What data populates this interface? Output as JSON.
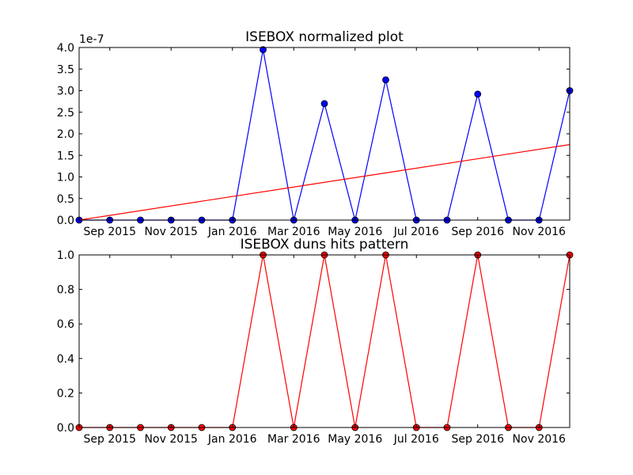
{
  "chart_data": [
    {
      "type": "line",
      "title": "ISEBOX normalized plot",
      "offset_label": "1e-7",
      "x": [
        "2015-08",
        "2015-09",
        "2015-10",
        "2015-11",
        "2015-12",
        "2016-01",
        "2016-02",
        "2016-03",
        "2016-04",
        "2016-05",
        "2016-06",
        "2016-07",
        "2016-08",
        "2016-09",
        "2016-10",
        "2016-11",
        "2016-12"
      ],
      "series": [
        {
          "color": "#0000ff",
          "marker": true,
          "values": [
            0,
            0,
            0,
            0,
            0,
            0,
            3.95,
            0,
            2.7,
            0,
            3.25,
            0,
            0,
            2.92,
            0,
            0,
            3.0
          ]
        },
        {
          "color": "#ff0000",
          "marker": false,
          "x": [
            "2015-08",
            "2016-12"
          ],
          "values": [
            0,
            1.75
          ]
        }
      ],
      "xlim": [
        "2015-08",
        "2016-12"
      ],
      "xticks": [
        {
          "value": "2015-09",
          "label": "Sep 2015"
        },
        {
          "value": "2015-11",
          "label": "Nov 2015"
        },
        {
          "value": "2016-01",
          "label": "Jan 2016"
        },
        {
          "value": "2016-03",
          "label": "Mar 2016"
        },
        {
          "value": "2016-05",
          "label": "May 2016"
        },
        {
          "value": "2016-07",
          "label": "Jul 2016"
        },
        {
          "value": "2016-09",
          "label": "Sep 2016"
        },
        {
          "value": "2016-11",
          "label": "Nov 2016"
        }
      ],
      "ylim": [
        0,
        4
      ],
      "yticks": [
        {
          "value": 0,
          "label": "0.0"
        },
        {
          "value": 0.5,
          "label": "0.5"
        },
        {
          "value": 1,
          "label": "1.0"
        },
        {
          "value": 1.5,
          "label": "1.5"
        },
        {
          "value": 2,
          "label": "2.0"
        },
        {
          "value": 2.5,
          "label": "2.5"
        },
        {
          "value": 3,
          "label": "3.0"
        },
        {
          "value": 3.5,
          "label": "3.5"
        },
        {
          "value": 4,
          "label": "4.0"
        }
      ]
    },
    {
      "type": "line",
      "title": "ISEBOX duns hits pattern",
      "x": [
        "2015-08",
        "2015-09",
        "2015-10",
        "2015-11",
        "2015-12",
        "2016-01",
        "2016-02",
        "2016-03",
        "2016-04",
        "2016-05",
        "2016-06",
        "2016-07",
        "2016-08",
        "2016-09",
        "2016-10",
        "2016-11",
        "2016-12"
      ],
      "series": [
        {
          "color": "#ff0000",
          "marker": true,
          "values": [
            0,
            0,
            0,
            0,
            0,
            0,
            1,
            0,
            1,
            0,
            1,
            0,
            0,
            1,
            0,
            0,
            1
          ]
        }
      ],
      "xlim": [
        "2015-08",
        "2016-12"
      ],
      "xticks": [
        {
          "value": "2015-09",
          "label": "Sep 2015"
        },
        {
          "value": "2015-11",
          "label": "Nov 2015"
        },
        {
          "value": "2016-01",
          "label": "Jan 2016"
        },
        {
          "value": "2016-03",
          "label": "Mar 2016"
        },
        {
          "value": "2016-05",
          "label": "May 2016"
        },
        {
          "value": "2016-07",
          "label": "Jul 2016"
        },
        {
          "value": "2016-09",
          "label": "Sep 2016"
        },
        {
          "value": "2016-11",
          "label": "Nov 2016"
        }
      ],
      "ylim": [
        0,
        1
      ],
      "yticks": [
        {
          "value": 0,
          "label": "0.0"
        },
        {
          "value": 0.2,
          "label": "0.2"
        },
        {
          "value": 0.4,
          "label": "0.4"
        },
        {
          "value": 0.6,
          "label": "0.6"
        },
        {
          "value": 0.8,
          "label": "0.8"
        },
        {
          "value": 1,
          "label": "1.0"
        }
      ]
    }
  ]
}
